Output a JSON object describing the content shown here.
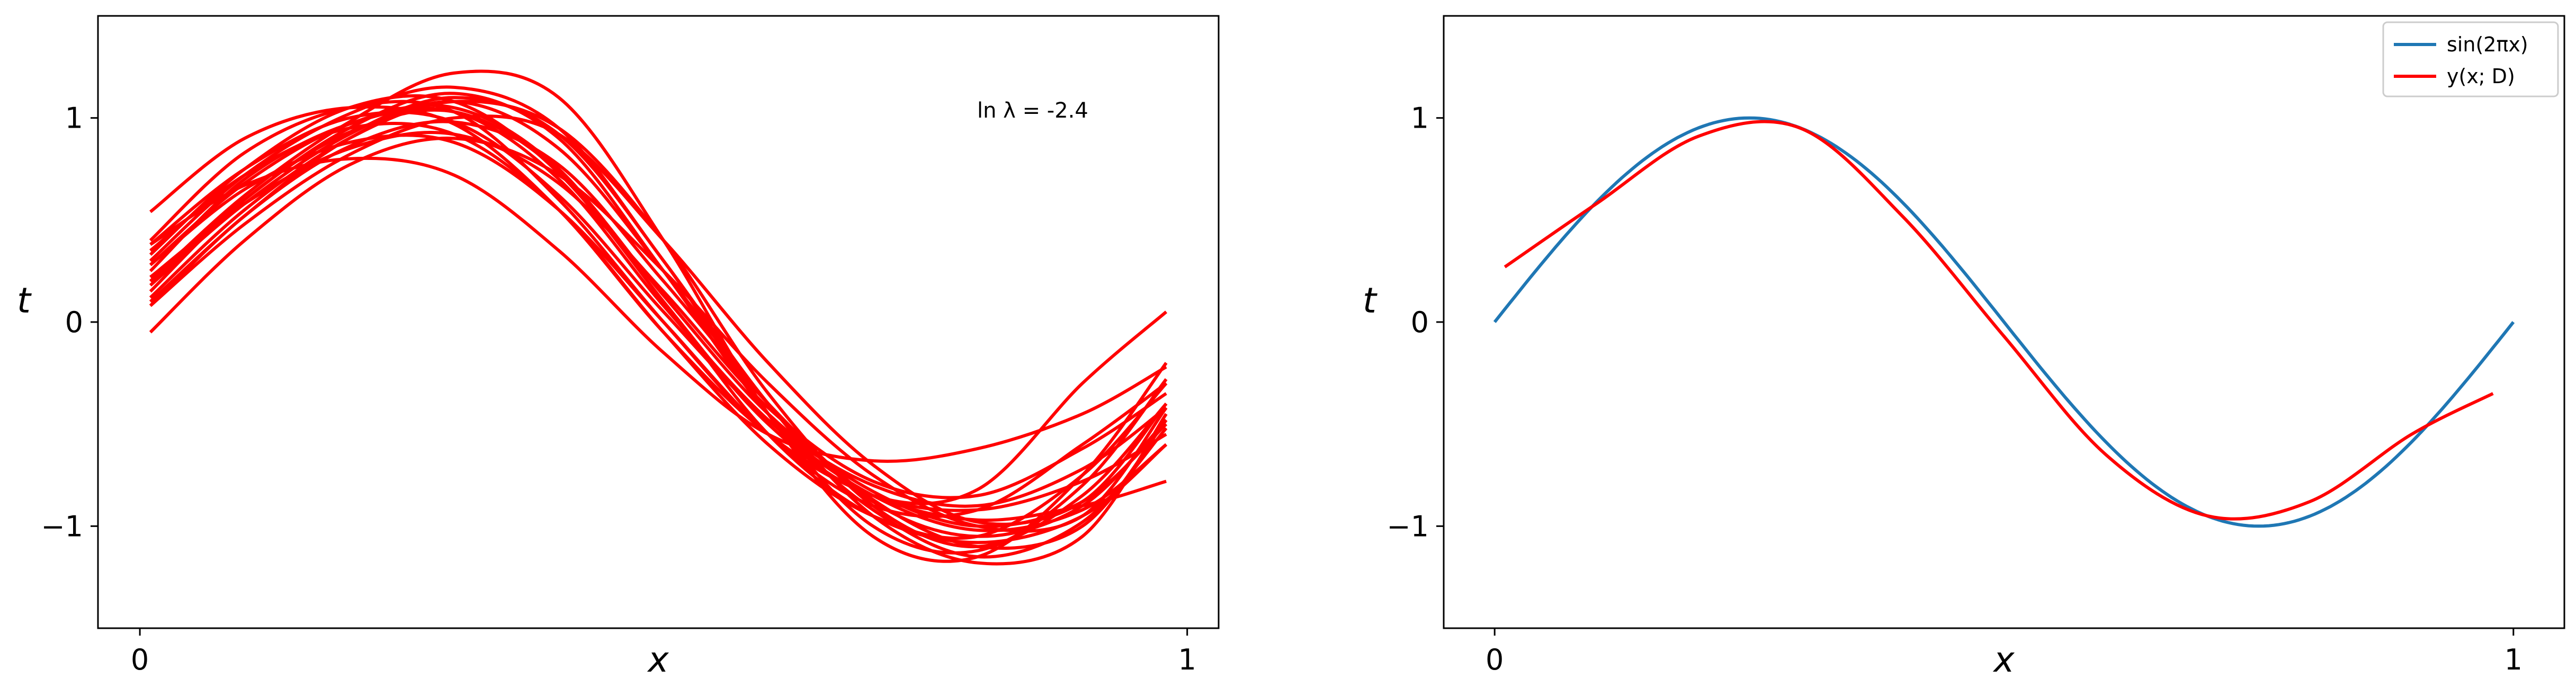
{
  "chart_data": [
    {
      "type": "line",
      "xlabel": "x",
      "ylabel": "t",
      "xlim": [
        -0.04,
        1.03
      ],
      "ylim": [
        -1.5,
        1.5
      ],
      "xticks": [
        0,
        1
      ],
      "xtick_labels": [
        "0",
        "1"
      ],
      "yticks": [
        -1,
        0,
        1
      ],
      "ytick_labels": [
        "−1",
        "0",
        "1"
      ],
      "annotation": "ln λ = -2.4",
      "grid": false,
      "legend": null,
      "x": [
        0.01,
        0.1,
        0.2,
        0.3,
        0.4,
        0.5,
        0.6,
        0.7,
        0.8,
        0.9,
        0.98
      ],
      "series": [
        {
          "values": [
            0.4,
            0.83,
            1.05,
            1.03,
            0.6,
            0.0,
            -0.55,
            -0.85,
            -0.92,
            -0.78,
            -0.55
          ],
          "color": "#ff0000"
        },
        {
          "values": [
            0.25,
            0.7,
            0.97,
            1.03,
            0.7,
            0.08,
            -0.48,
            -0.85,
            -1.02,
            -0.92,
            -0.6
          ],
          "color": "#ff0000"
        },
        {
          "values": [
            0.15,
            0.6,
            0.93,
            1.03,
            0.74,
            0.13,
            -0.45,
            -0.83,
            -1.0,
            -0.88,
            -0.5
          ],
          "color": "#ff0000"
        },
        {
          "values": [
            0.54,
            0.9,
            1.05,
            0.97,
            0.55,
            -0.05,
            -0.55,
            -0.85,
            -0.97,
            -0.9,
            -0.78
          ],
          "color": "#ff0000"
        },
        {
          "values": [
            0.08,
            0.52,
            0.86,
            0.98,
            0.77,
            0.2,
            -0.4,
            -0.87,
            -1.1,
            -1.0,
            -0.48
          ],
          "color": "#ff0000"
        },
        {
          "values": [
            -0.05,
            0.4,
            0.77,
            0.9,
            0.72,
            0.25,
            -0.3,
            -0.75,
            -1.0,
            -0.95,
            -0.42
          ],
          "color": "#ff0000"
        },
        {
          "values": [
            0.3,
            0.72,
            1.02,
            1.15,
            0.95,
            0.3,
            -0.4,
            -0.95,
            -1.18,
            -1.05,
            -0.45
          ],
          "color": "#ff0000"
        },
        {
          "values": [
            0.2,
            0.62,
            0.98,
            1.22,
            1.1,
            0.4,
            -0.45,
            -1.05,
            -1.15,
            -0.75,
            -0.2
          ],
          "color": "#ff0000"
        },
        {
          "values": [
            0.38,
            0.67,
            0.8,
            0.72,
            0.35,
            -0.15,
            -0.55,
            -0.68,
            -0.62,
            -0.45,
            -0.22
          ],
          "color": "#ff0000"
        },
        {
          "values": [
            0.33,
            0.75,
            1.05,
            1.08,
            0.73,
            0.1,
            -0.55,
            -0.95,
            -1.08,
            -0.95,
            -0.6
          ],
          "color": "#ff0000"
        },
        {
          "values": [
            0.28,
            0.65,
            0.88,
            0.88,
            0.55,
            0.0,
            -0.55,
            -0.9,
            -0.92,
            -0.6,
            -0.3
          ],
          "color": "#ff0000"
        },
        {
          "values": [
            0.12,
            0.55,
            0.9,
            1.08,
            0.95,
            0.4,
            -0.35,
            -0.9,
            -1.1,
            -0.85,
            -0.4
          ],
          "color": "#ff0000"
        },
        {
          "values": [
            0.2,
            0.6,
            0.95,
            1.12,
            0.9,
            0.25,
            -0.45,
            -0.92,
            -1.15,
            -0.98,
            -0.52
          ],
          "color": "#ff0000"
        },
        {
          "values": [
            0.22,
            0.58,
            0.85,
            0.92,
            0.68,
            0.15,
            -0.42,
            -0.78,
            -0.85,
            -0.62,
            -0.35
          ],
          "color": "#ff0000"
        },
        {
          "values": [
            0.08,
            0.48,
            0.82,
            1.0,
            0.92,
            0.4,
            -0.2,
            -0.7,
            -0.98,
            -0.88,
            -0.4
          ],
          "color": "#ff0000"
        },
        {
          "values": [
            0.35,
            0.72,
            0.95,
            0.92,
            0.55,
            -0.05,
            -0.6,
            -0.95,
            -1.05,
            -0.75,
            -0.3
          ],
          "color": "#ff0000"
        },
        {
          "values": [
            0.18,
            0.58,
            0.92,
            1.1,
            0.92,
            0.3,
            -0.45,
            -1.0,
            -1.12,
            -0.8,
            -0.28
          ],
          "color": "#ff0000"
        },
        {
          "values": [
            0.28,
            0.68,
            0.97,
            1.05,
            0.75,
            0.1,
            -0.5,
            -0.85,
            -0.82,
            -0.3,
            0.05
          ],
          "color": "#ff0000"
        },
        {
          "values": [
            0.38,
            0.75,
            1.0,
            0.98,
            0.62,
            0.05,
            -0.48,
            -0.8,
            -0.9,
            -0.72,
            -0.42
          ],
          "color": "#ff0000"
        },
        {
          "values": [
            0.1,
            0.52,
            0.9,
            1.08,
            0.85,
            0.25,
            -0.4,
            -0.88,
            -1.05,
            -0.9,
            -0.48
          ],
          "color": "#ff0000"
        }
      ]
    },
    {
      "type": "line",
      "xlabel": "x",
      "ylabel": "t",
      "xlim": [
        -0.05,
        1.05
      ],
      "ylim": [
        -1.5,
        1.5
      ],
      "xticks": [
        0,
        1
      ],
      "xtick_labels": [
        "0",
        "1"
      ],
      "yticks": [
        -1,
        0,
        1
      ],
      "ytick_labels": [
        "−1",
        "0",
        "1"
      ],
      "grid": false,
      "legend": "top-right",
      "series": [
        {
          "name": "sin(2πx)",
          "color": "#1f77b4",
          "function": "sin(2*pi*x)",
          "x": [
            0.0,
            1.0
          ]
        },
        {
          "name": "y(x; D)",
          "color": "#ff0000",
          "x": [
            0.01,
            0.1,
            0.2,
            0.3,
            0.4,
            0.5,
            0.6,
            0.7,
            0.8,
            0.9,
            0.98
          ],
          "values": [
            0.27,
            0.58,
            0.91,
            0.95,
            0.52,
            -0.07,
            -0.65,
            -0.95,
            -0.88,
            -0.55,
            -0.35
          ]
        }
      ]
    }
  ]
}
